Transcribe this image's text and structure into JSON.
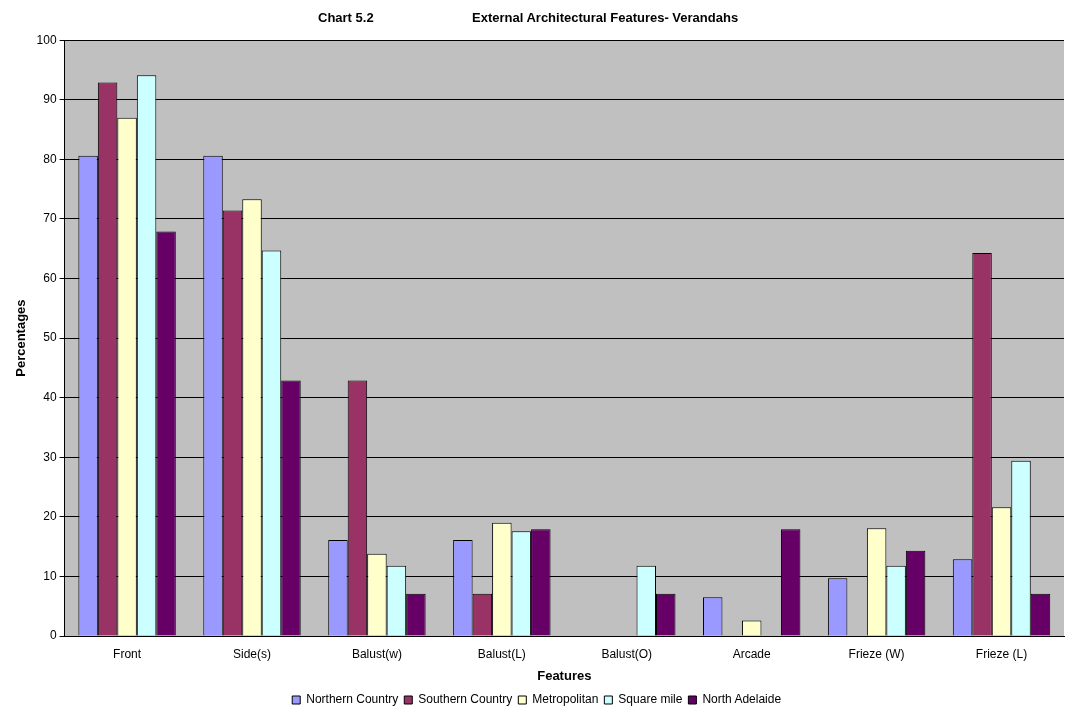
{
  "chart_data": {
    "type": "bar",
    "title": "Chart 5.2",
    "subtitle": "External Architectural Features- Verandahs",
    "xlabel": "Features",
    "ylabel": "Percentages",
    "categories": [
      "Front",
      "Side(s)",
      "Balust(w)",
      "Balust(L)",
      "Balust(O)",
      "Arcade",
      "Frieze (W)",
      "Frieze (L)"
    ],
    "series": [
      {
        "name": "Northern Country",
        "color": "#9999ff",
        "values": [
          80.6,
          80.6,
          16.1,
          16.1,
          0,
          6.5,
          9.7,
          12.9
        ]
      },
      {
        "name": "Southern Country",
        "color": "#993366",
        "values": [
          92.9,
          71.4,
          42.9,
          7.1,
          0,
          0,
          0,
          64.3
        ]
      },
      {
        "name": "Metropolitan",
        "color": "#ffffcc",
        "values": [
          87.0,
          73.3,
          13.8,
          19.0,
          0,
          2.6,
          18.1,
          21.6
        ]
      },
      {
        "name": "Square mile",
        "color": "#ccffff",
        "values": [
          94.1,
          64.7,
          11.8,
          17.6,
          11.8,
          0,
          11.8,
          29.4
        ]
      },
      {
        "name": "North Adelaide",
        "color": "#660066",
        "values": [
          67.9,
          42.9,
          7.1,
          17.9,
          7.1,
          17.9,
          14.3,
          7.1
        ]
      }
    ],
    "ylim": [
      0,
      100
    ],
    "yticks": [
      0,
      10,
      20,
      30,
      40,
      50,
      60,
      70,
      80,
      90,
      100
    ],
    "grid": "y",
    "legend": "bottom"
  }
}
